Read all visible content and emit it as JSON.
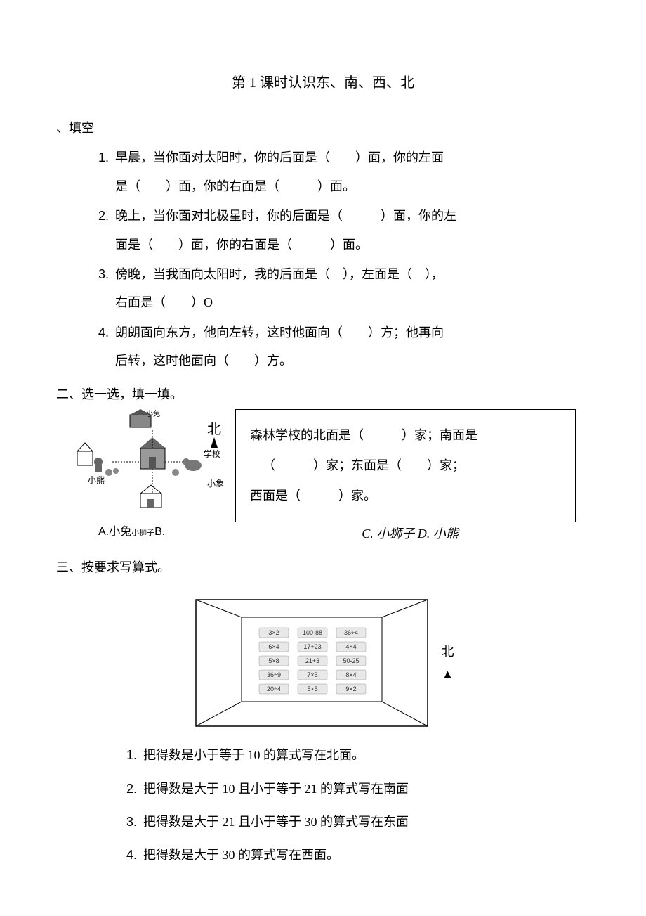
{
  "title": "第 1 课时认识东、南、西、北",
  "section1": {
    "header": "、填空",
    "questions": [
      {
        "num": "1.",
        "line1": "早晨，当你面对太阳时，你的后面是（　　）面，你的左面",
        "line2": "是（　　）面，你的右面是（　　　）面。"
      },
      {
        "num": "2.",
        "line1": "晚上，当你面对北极星时，你的后面是（　　　）面，你的左",
        "line2": "面是（　　）面，你的右面是（　　　）面。"
      },
      {
        "num": "3.",
        "line1": "傍晚，当我面向太阳时，我的后面是（　），左面是（　），",
        "line2": "右面是（　　）O"
      },
      {
        "num": "4.",
        "line1": "朗朗面向东方，他向左转，这时他面向（　　）方；他再向",
        "line2": "后转，这时他面向（　　）方。"
      }
    ]
  },
  "section2": {
    "header": "二、选一选，填一填。",
    "map_labels": {
      "rabbit": "小兔",
      "school": "学校",
      "bear": "小熊",
      "elephant": "小象",
      "lion": "小狮子",
      "north": "北"
    },
    "box_text": {
      "line1a": "森林学校的北面是（",
      "line1b": "）家；南面是",
      "line2a": "（　　　）家；东面是（",
      "line2b": "）家；",
      "line3": "西面是（　　　）家。"
    },
    "options": {
      "left": "A.小兔",
      "lion_small": "小狮子",
      "b": "B.",
      "right": "C. 小狮子 D. 小熊"
    }
  },
  "section3": {
    "header": "三、按要求写算式。",
    "north": "北",
    "expressions": [
      [
        "3×2",
        "100-88",
        "36÷4"
      ],
      [
        "6×4",
        "17+23",
        "4×4"
      ],
      [
        "5×8",
        "21+3",
        "50-25"
      ],
      [
        "36÷9",
        "7×5",
        "8×4"
      ],
      [
        "20÷4",
        "5×5",
        "9×2"
      ]
    ],
    "expr_colors": [
      "#e8e8e8",
      "#d0d0d0",
      "#e0e0e0"
    ],
    "questions": [
      {
        "num": "1.",
        "text": "把得数是小于等于 10 的算式写在北面。"
      },
      {
        "num": "2.",
        "text": "把得数是大于 10 且小于等于 21 的算式写在南面"
      },
      {
        "num": "3.",
        "text": "把得数是大于 21 且小于等于 30 的算式写在东面"
      },
      {
        "num": "4.",
        "text": "把得数是大于 30 的算式写在西面。"
      }
    ]
  }
}
